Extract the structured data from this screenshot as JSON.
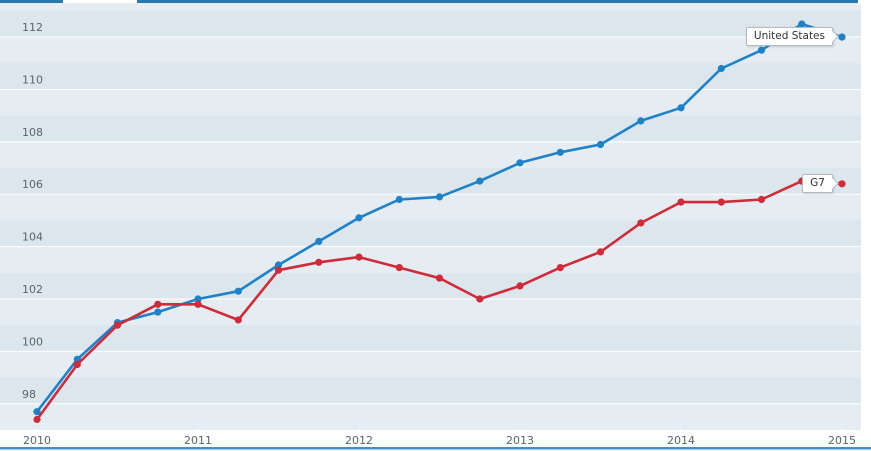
{
  "chart": {
    "plot_bg": "#dce7ed",
    "band_highlight": "rgba(255,255,255,0.28)",
    "gridline_color": "#ffffff",
    "axis_text_color": "#5a646c",
    "top_border_color": "#2878b0",
    "bottom_border_color": "#4191cd",
    "tick_color": "#edf3f7"
  },
  "chart_data": {
    "type": "line",
    "title": "",
    "xlabel": "",
    "ylabel": "",
    "x": [
      "2010-Q1",
      "2010-Q2",
      "2010-Q3",
      "2010-Q4",
      "2011-Q1",
      "2011-Q2",
      "2011-Q3",
      "2011-Q4",
      "2012-Q1",
      "2012-Q2",
      "2012-Q3",
      "2012-Q4",
      "2013-Q1",
      "2013-Q2",
      "2013-Q3",
      "2013-Q4",
      "2014-Q1",
      "2014-Q2",
      "2014-Q3",
      "2014-Q4",
      "2015-Q1"
    ],
    "x_tick_labels": [
      "2010",
      "2011",
      "2012",
      "2013",
      "2014",
      "2015"
    ],
    "y_ticks": [
      98,
      100,
      102,
      104,
      106,
      108,
      110,
      112
    ],
    "ylim": [
      97,
      113.3
    ],
    "grid": "horizontal",
    "legend": "end-of-line callout labels",
    "series": [
      {
        "name": "United States",
        "color": "#1e82c8",
        "values": [
          97.7,
          99.7,
          101.1,
          101.5,
          102.0,
          102.3,
          103.3,
          104.2,
          105.1,
          105.8,
          105.9,
          106.5,
          107.2,
          107.6,
          107.9,
          108.8,
          109.3,
          110.8,
          111.5,
          112.5,
          112.0
        ]
      },
      {
        "name": "G7",
        "color": "#cf2b39",
        "values": [
          97.4,
          99.5,
          101.0,
          101.8,
          101.8,
          101.2,
          103.1,
          103.4,
          103.6,
          103.2,
          102.8,
          102.0,
          102.5,
          103.2,
          103.8,
          104.9,
          105.7,
          105.7,
          105.8,
          106.5,
          106.4
        ]
      }
    ]
  }
}
